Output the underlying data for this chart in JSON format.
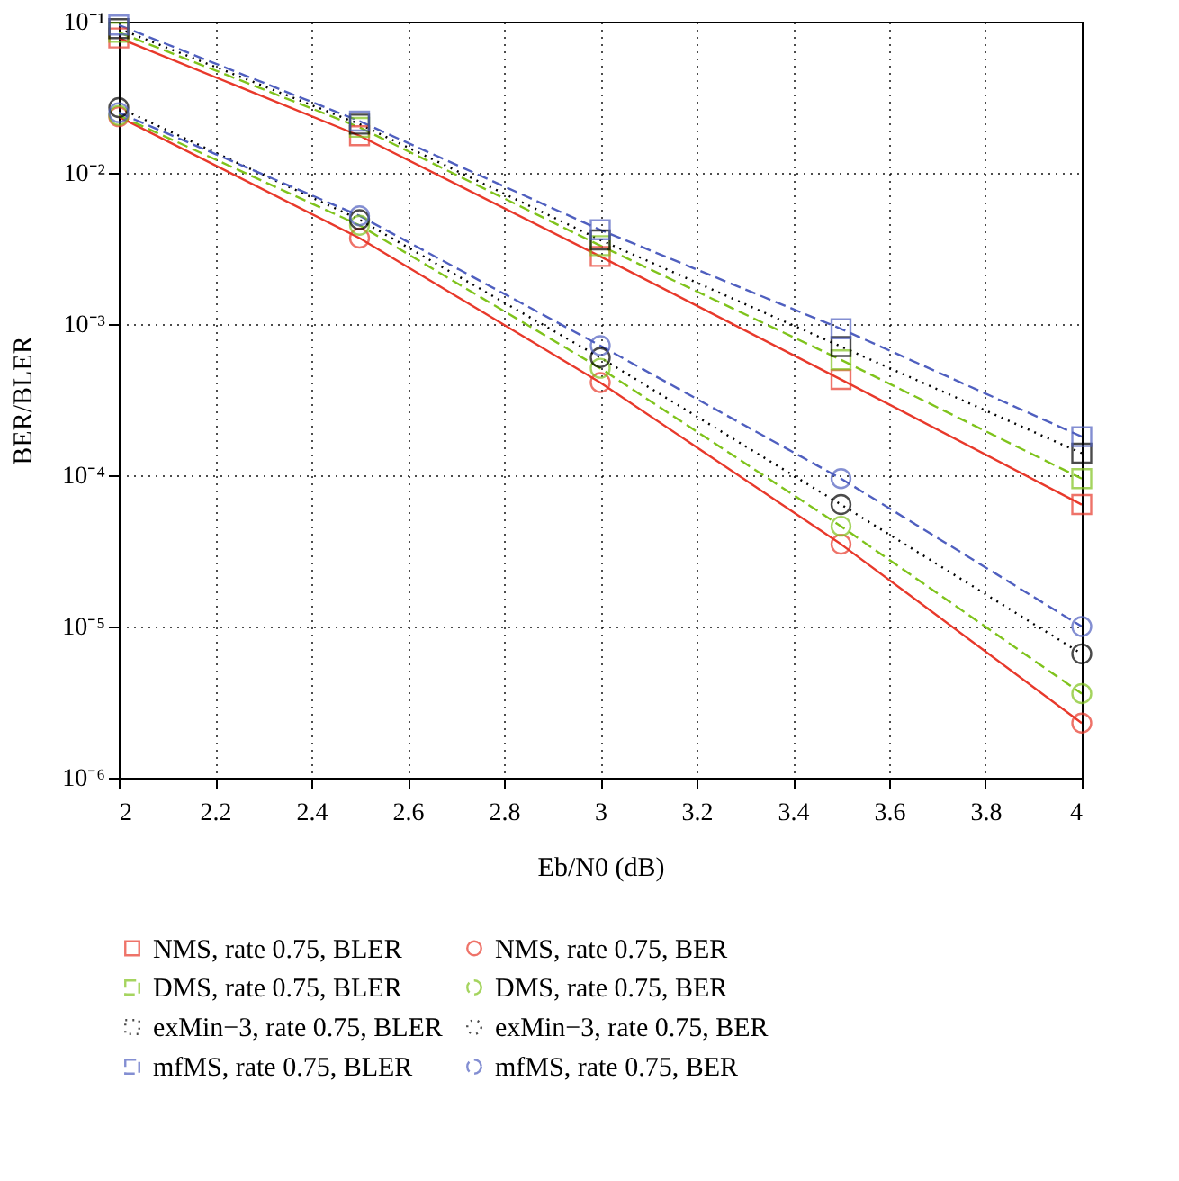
{
  "chart_data": {
    "type": "line",
    "xlabel": "Eb/N0 (dB)",
    "ylabel": "BER/BLER",
    "log": "y",
    "grid": true,
    "legend": "bottom",
    "x": [
      2,
      2.5,
      3,
      3.5,
      4
    ],
    "xlim": [
      2,
      4
    ],
    "xticks": [
      2,
      2.2,
      2.4,
      2.6,
      2.8,
      3,
      3.2,
      3.4,
      3.6,
      3.8,
      4
    ],
    "ylim": [
      1e-06,
      0.1
    ],
    "yticks": [
      {
        "value": 1e-06,
        "label": "10⁻⁶"
      },
      {
        "value": 1e-05,
        "label": "10⁻⁵"
      },
      {
        "value": 0.0001,
        "label": "10⁻⁴"
      },
      {
        "value": 0.001,
        "label": "10⁻³"
      },
      {
        "value": 0.01,
        "label": "10⁻²"
      },
      {
        "value": 0.1,
        "label": "10⁻¹"
      }
    ],
    "series": [
      {
        "name": "NMS, rate 0.75, BLER",
        "color": "#e8392b",
        "marker": "square",
        "line_style": "solid",
        "values": [
          0.078,
          0.0176,
          0.0028,
          0.00043,
          6.4e-05
        ]
      },
      {
        "name": "NMS, rate 0.75, BER",
        "color": "#e8392b",
        "marker": "circle",
        "line_style": "solid",
        "values": [
          0.0235,
          0.0037,
          0.00041,
          3.5e-05,
          2.3e-06
        ]
      },
      {
        "name": "DMS, rate 0.75, BLER",
        "color": "#7fc31c",
        "marker": "square",
        "line_style": "dashed",
        "values": [
          0.085,
          0.02,
          0.0033,
          0.00058,
          9.5e-05
        ]
      },
      {
        "name": "DMS, rate 0.75, BER",
        "color": "#7fc31c",
        "marker": "circle",
        "line_style": "dashed",
        "values": [
          0.024,
          0.0045,
          0.00051,
          4.6e-05,
          3.6e-06
        ]
      },
      {
        "name": "exMin−3, rate 0.75, BLER",
        "color": "#000000",
        "marker": "square",
        "line_style": "dotted",
        "values": [
          0.09,
          0.021,
          0.0036,
          0.00071,
          0.00014
        ]
      },
      {
        "name": "exMin−3, rate 0.75, BER",
        "color": "#000000",
        "marker": "circle",
        "line_style": "dotted",
        "values": [
          0.027,
          0.0049,
          0.0006,
          6.4e-05,
          6.6e-06
        ]
      },
      {
        "name": "mfMS, rate 0.75, BLER",
        "color": "#4f5fbf",
        "marker": "square",
        "line_style": "dashed",
        "values": [
          0.095,
          0.022,
          0.0042,
          0.00093,
          0.00018
        ]
      },
      {
        "name": "mfMS, rate 0.75, BER",
        "color": "#4f5fbf",
        "marker": "circle",
        "line_style": "dashed",
        "values": [
          0.025,
          0.0052,
          0.00072,
          9.5e-05,
          1e-05
        ]
      }
    ]
  }
}
